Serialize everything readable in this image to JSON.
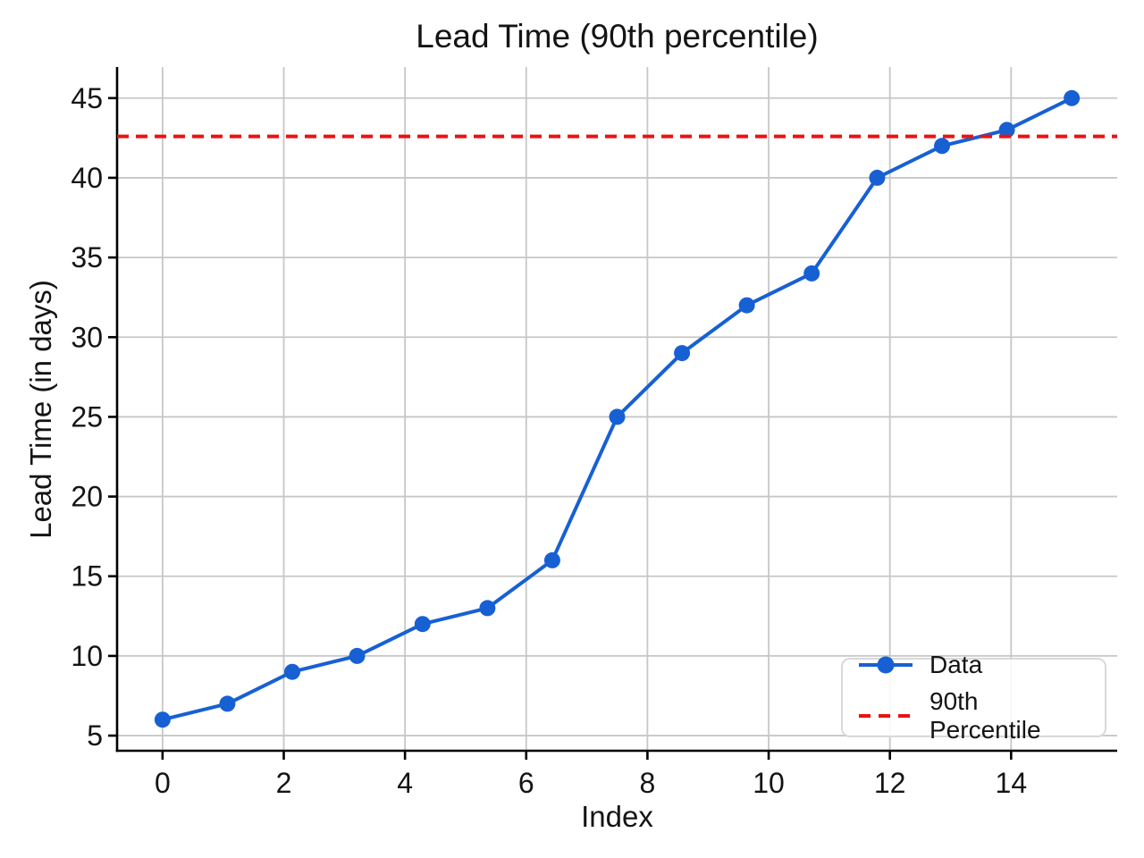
{
  "figure": {
    "title": "Lead Time (90th percentile)",
    "xlabel": "Index",
    "ylabel": "Lead Time (in days)"
  },
  "legend": {
    "position": "lower right",
    "items": [
      {
        "label": "Data",
        "style": "solid-line-with-circle-marker",
        "color": "#1760d4"
      },
      {
        "label": "90th Percentile",
        "style": "dashed-line",
        "color": "#eb1212"
      }
    ]
  },
  "chart_data": {
    "type": "line",
    "title": "Lead Time (90th percentile)",
    "xlabel": "Index",
    "ylabel": "Lead Time (in days)",
    "x": [
      0,
      1.07,
      2.14,
      3.21,
      4.29,
      5.36,
      6.43,
      7.5,
      8.57,
      9.64,
      10.71,
      11.79,
      12.86,
      13.93,
      15
    ],
    "series": [
      {
        "name": "Data",
        "color": "#1760d4",
        "marker": "circle",
        "values": [
          6,
          7,
          9,
          10,
          12,
          13,
          16,
          25,
          29,
          32,
          34,
          40,
          42,
          43,
          45
        ]
      }
    ],
    "reference_lines": [
      {
        "name": "90th Percentile",
        "value": 42.6,
        "color": "#eb1212",
        "style": "dashed"
      }
    ],
    "xlim": [
      -0.75,
      15.75
    ],
    "ylim": [
      4.05,
      46.95
    ],
    "x_ticks": [
      0,
      2,
      4,
      6,
      8,
      10,
      12,
      14
    ],
    "y_ticks": [
      5,
      10,
      15,
      20,
      25,
      30,
      35,
      40,
      45
    ],
    "grid": true,
    "grid_color": "#c7c7c7",
    "axis_color": "#000000",
    "text_color": "#141414",
    "legend_position": "lower right"
  }
}
